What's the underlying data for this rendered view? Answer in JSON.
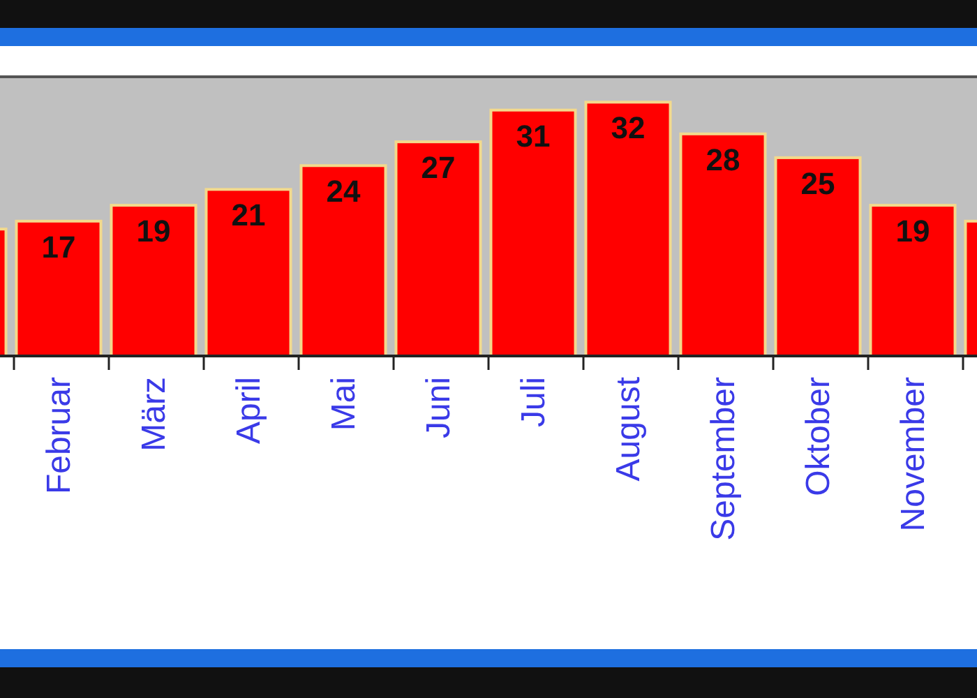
{
  "chart_data": {
    "type": "bar",
    "categories": [
      null,
      "Februar",
      "März",
      "April",
      "Mai",
      "Juni",
      "Juli",
      "August",
      "September",
      "Oktober",
      "November",
      null
    ],
    "values": [
      16,
      17,
      19,
      21,
      24,
      27,
      31,
      32,
      28,
      25,
      19,
      17
    ],
    "value_labels": [
      null,
      "17",
      "19",
      "21",
      "24",
      "27",
      "31",
      "32",
      "28",
      "25",
      "19",
      null
    ],
    "color": "#ff0000"
  }
}
